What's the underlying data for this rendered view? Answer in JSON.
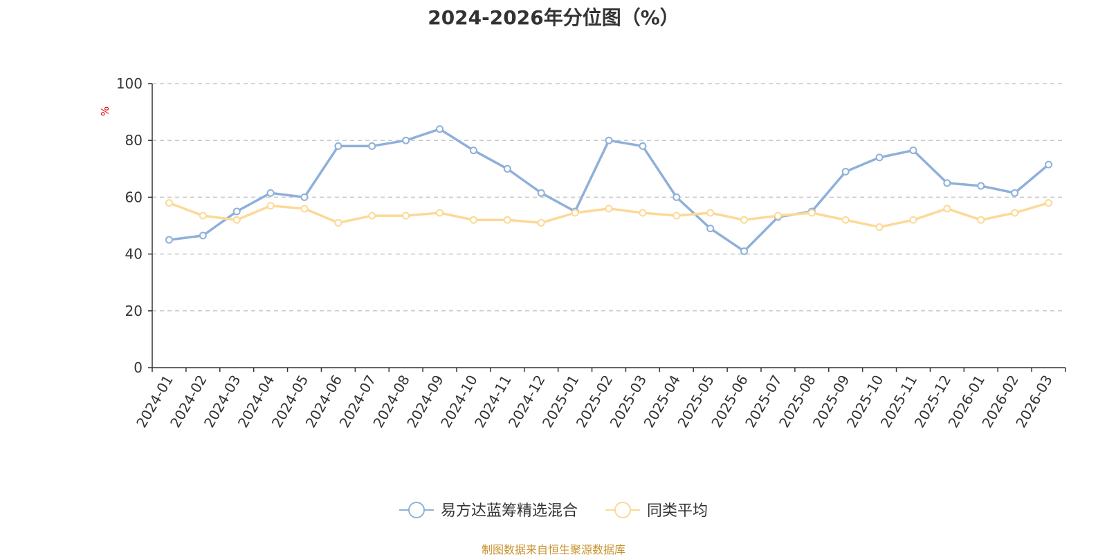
{
  "title": "2024-2026年分位图（%）",
  "footer": "制图数据来自恒生聚源数据库",
  "chart_data": {
    "type": "line",
    "title": "2024-2026年分位图（%）",
    "ylabel": "%",
    "xlabel": "",
    "ylim": [
      0,
      100
    ],
    "yticks": [
      0,
      20,
      40,
      60,
      80,
      100
    ],
    "grid": true,
    "legend_position": "bottom-center",
    "categories": [
      "2024-01",
      "2024-02",
      "2024-03",
      "2024-04",
      "2024-05",
      "2024-06",
      "2024-07",
      "2024-08",
      "2024-09",
      "2024-10",
      "2024-11",
      "2024-12",
      "2025-01",
      "2025-02",
      "2025-03",
      "2025-04",
      "2025-05",
      "2025-06",
      "2025-07",
      "2025-08",
      "2025-09",
      "2025-10",
      "2025-11",
      "2025-12",
      "2026-01",
      "2026-02",
      "2026-03"
    ],
    "series": [
      {
        "name": "易方达蓝筹精选混合",
        "color": "#8eb0da",
        "values": [
          45,
          46.5,
          55,
          61.5,
          60,
          78,
          78,
          80,
          84,
          76.5,
          70,
          61.5,
          55,
          80,
          78,
          60,
          49,
          41,
          53,
          55,
          69,
          74,
          76.5,
          65,
          64,
          61.5,
          71.5
        ]
      },
      {
        "name": "同类平均",
        "color": "#fcd996",
        "values": [
          58,
          53.5,
          52,
          57,
          56,
          51,
          53.5,
          53.5,
          54.5,
          52,
          52,
          51,
          54.5,
          56,
          54.5,
          53.5,
          54.5,
          52,
          53.5,
          54.5,
          52,
          49.5,
          52,
          56,
          52,
          54.5,
          58
        ]
      }
    ]
  }
}
